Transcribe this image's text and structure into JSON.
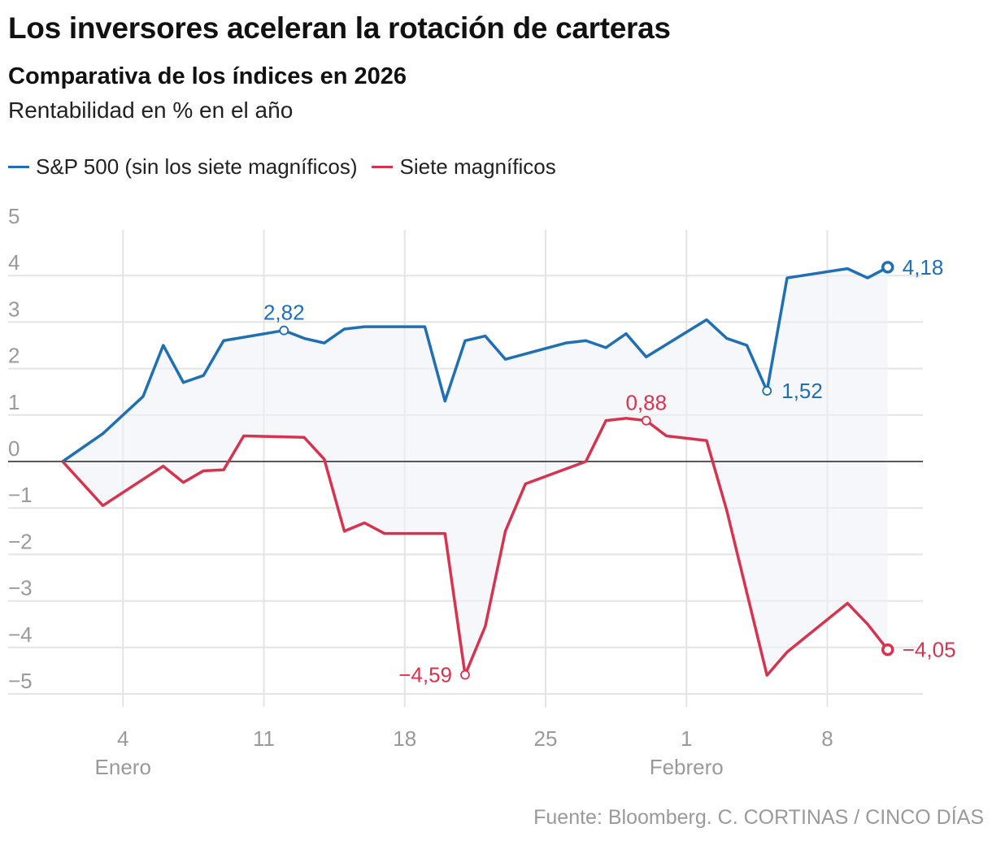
{
  "header": {
    "title": "Los inversores aceleran la rotación de carteras",
    "subtitle": "Comparativa de los índices en 2026",
    "units": "Rentabilidad en % en el año"
  },
  "legend": [
    {
      "label": "S&P 500 (sin los siete magníficos)",
      "color": "#1f6fb5"
    },
    {
      "label": "Siete magníficos",
      "color": "#d7334f"
    }
  ],
  "source": "Fuente: Bloomberg. C. CORTINAS / CINCO DÍAS",
  "chart_data": {
    "type": "line",
    "x_unit": "day (2026)",
    "xlim": [
      "2025-12-31",
      "2026-02-15"
    ],
    "ylim": [
      -5.5,
      5
    ],
    "grid": true,
    "yticks": [
      5,
      4,
      3,
      2,
      1,
      0,
      -1,
      -2,
      -3,
      -4,
      -5
    ],
    "ytick_labels": [
      "5",
      "4",
      "3",
      "2",
      "1",
      "0",
      "−1",
      "−2",
      "−3",
      "−4",
      "−5"
    ],
    "xticks": [
      {
        "date": "2026-01-04",
        "label": "4"
      },
      {
        "date": "2026-01-11",
        "label": "11"
      },
      {
        "date": "2026-01-18",
        "label": "18"
      },
      {
        "date": "2026-01-25",
        "label": "25"
      },
      {
        "date": "2026-02-01",
        "label": "1"
      },
      {
        "date": "2026-02-08",
        "label": "8"
      }
    ],
    "month_labels": [
      {
        "date": "2026-01-04",
        "label": "Enero"
      },
      {
        "date": "2026-02-01",
        "label": "Febrero"
      }
    ],
    "series": [
      {
        "name": "S&P 500 (sin los siete magníficos)",
        "color": "#1f6fb5",
        "points": [
          [
            "2026-01-01",
            0
          ],
          [
            "2026-01-03",
            0.6
          ],
          [
            "2026-01-05",
            1.4
          ],
          [
            "2026-01-06",
            2.5
          ],
          [
            "2026-01-07",
            1.7
          ],
          [
            "2026-01-08",
            1.85
          ],
          [
            "2026-01-09",
            2.6
          ],
          [
            "2026-01-12",
            2.82
          ],
          [
            "2026-01-13",
            2.65
          ],
          [
            "2026-01-14",
            2.55
          ],
          [
            "2026-01-15",
            2.85
          ],
          [
            "2026-01-16",
            2.9
          ],
          [
            "2026-01-19",
            2.9
          ],
          [
            "2026-01-20",
            1.3
          ],
          [
            "2026-01-21",
            2.6
          ],
          [
            "2026-01-22",
            2.7
          ],
          [
            "2026-01-23",
            2.2
          ],
          [
            "2026-01-26",
            2.55
          ],
          [
            "2026-01-27",
            2.6
          ],
          [
            "2026-01-28",
            2.45
          ],
          [
            "2026-01-29",
            2.75
          ],
          [
            "2026-01-30",
            2.25
          ],
          [
            "2026-02-02",
            3.05
          ],
          [
            "2026-02-03",
            2.65
          ],
          [
            "2026-02-04",
            2.5
          ],
          [
            "2026-02-05",
            1.52
          ],
          [
            "2026-02-06",
            3.95
          ],
          [
            "2026-02-09",
            4.15
          ],
          [
            "2026-02-10",
            3.95
          ],
          [
            "2026-02-11",
            4.18
          ]
        ],
        "annotations": [
          {
            "date": "2026-01-12",
            "value": 2.82,
            "label": "2,82",
            "position": "above"
          },
          {
            "date": "2026-02-05",
            "value": 1.52,
            "label": "1,52",
            "position": "right"
          },
          {
            "date": "2026-02-11",
            "value": 4.18,
            "label": "4,18",
            "position": "right",
            "end": true
          }
        ]
      },
      {
        "name": "Siete magníficos",
        "color": "#d7334f",
        "points": [
          [
            "2026-01-01",
            0
          ],
          [
            "2026-01-03",
            -0.95
          ],
          [
            "2026-01-06",
            -0.1
          ],
          [
            "2026-01-07",
            -0.45
          ],
          [
            "2026-01-08",
            -0.2
          ],
          [
            "2026-01-09",
            -0.18
          ],
          [
            "2026-01-10",
            0.55
          ],
          [
            "2026-01-13",
            0.52
          ],
          [
            "2026-01-14",
            0.05
          ],
          [
            "2026-01-15",
            -1.5
          ],
          [
            "2026-01-16",
            -1.32
          ],
          [
            "2026-01-17",
            -1.55
          ],
          [
            "2026-01-20",
            -1.55
          ],
          [
            "2026-01-21",
            -4.59
          ],
          [
            "2026-01-22",
            -3.55
          ],
          [
            "2026-01-23",
            -1.5
          ],
          [
            "2026-01-24",
            -0.48
          ],
          [
            "2026-01-27",
            0
          ],
          [
            "2026-01-28",
            0.88
          ],
          [
            "2026-01-29",
            0.93
          ],
          [
            "2026-01-30",
            0.88
          ],
          [
            "2026-01-31",
            0.55
          ],
          [
            "2026-02-02",
            0.45
          ],
          [
            "2026-02-03",
            -1.05
          ],
          [
            "2026-02-05",
            -4.6
          ],
          [
            "2026-02-06",
            -4.1
          ],
          [
            "2026-02-09",
            -3.05
          ],
          [
            "2026-02-10",
            -3.5
          ],
          [
            "2026-02-11",
            -4.05
          ]
        ],
        "annotations": [
          {
            "date": "2026-01-21",
            "value": -4.59,
            "label": "−4,59",
            "position": "left"
          },
          {
            "date": "2026-01-30",
            "value": 0.88,
            "label": "0,88",
            "position": "above"
          },
          {
            "date": "2026-02-11",
            "value": -4.05,
            "label": "−4,05",
            "position": "right",
            "end": true
          }
        ]
      }
    ]
  }
}
